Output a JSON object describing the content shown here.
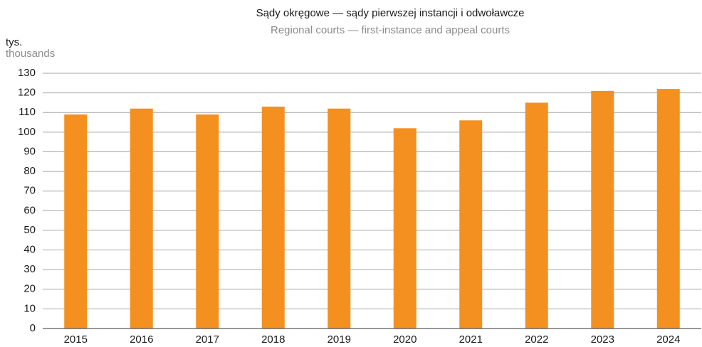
{
  "chart_data": {
    "type": "bar",
    "title": "Sądy okręgowe — sądy pierwszej instancji i odwoławcze",
    "subtitle": "Regional courts — first-instance and appeal courts",
    "y_label": "tys.",
    "y_label_secondary": "thousands",
    "categories": [
      "2015",
      "2016",
      "2017",
      "2018",
      "2019",
      "2020",
      "2021",
      "2022",
      "2023",
      "2024"
    ],
    "values": [
      109,
      112,
      109,
      113,
      112,
      102,
      106,
      115,
      121,
      122
    ],
    "color": "#f39020",
    "ylim": [
      0,
      130
    ],
    "yticks": [
      0,
      10,
      20,
      30,
      40,
      50,
      60,
      70,
      80,
      90,
      100,
      110,
      120,
      130
    ],
    "grid": true
  }
}
